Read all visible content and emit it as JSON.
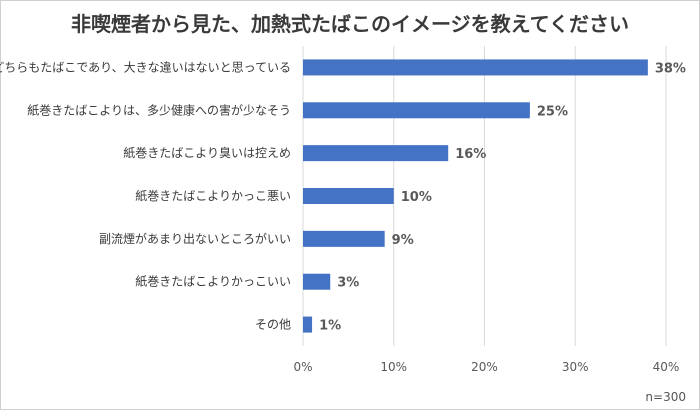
{
  "chart_data": {
    "type": "bar",
    "orientation": "horizontal",
    "title": "非喫煙者から見た、加熱式たばこのイメージを教えてください",
    "categories": [
      "どちらもたばこであり、大きな違いはないと思っている",
      "紙巻きたばこよりは、多少健康への害が少なそう",
      "紙巻きたばこより臭いは控えめ",
      "紙巻きたばこよりかっこ悪い",
      "副流煙があまり出ないところがいい",
      "紙巻きたばこよりかっこいい",
      "その他"
    ],
    "values": [
      38,
      25,
      16,
      10,
      9,
      3,
      1
    ],
    "value_labels": [
      "38%",
      "25%",
      "16%",
      "10%",
      "9%",
      "3%",
      "1%"
    ],
    "xlim": [
      0,
      40
    ],
    "xticks": [
      0,
      10,
      20,
      30,
      40
    ],
    "xtick_labels": [
      "0%",
      "10%",
      "20%",
      "30%",
      "40%"
    ],
    "grid": true,
    "bar_color": "#4472C4",
    "note": "n=300"
  }
}
